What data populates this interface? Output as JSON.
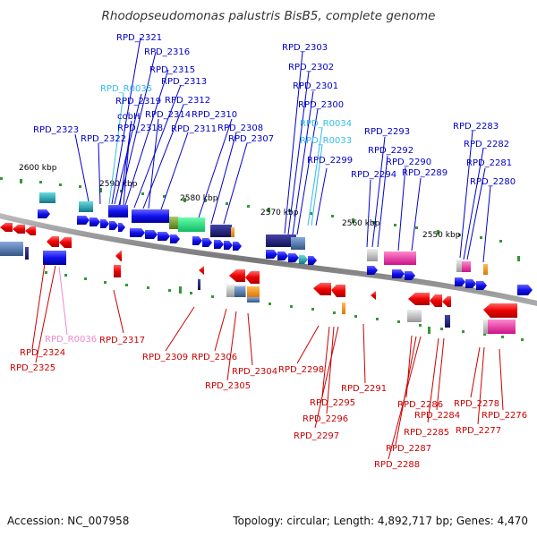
{
  "title": "Rhodopseudomonas palustris BisB5, complete genome",
  "footer": {
    "accession": "Accession: NC_007958",
    "summary": "Topology: circular; Length: 4,892,717 bp; Genes: 4,470"
  },
  "colors": {
    "forward_label": "#0000cc",
    "reverse_label": "#cc0000",
    "rna_forward_label": "#33bbee",
    "rna_reverse_label": "#ee88cc",
    "backbone": "#808080"
  },
  "scale_marks": [
    "2600 kbp",
    "2590 kbp",
    "2580 kbp",
    "2570 kbp",
    "2560 kbp",
    "2550 kbp"
  ],
  "forward_labels": [
    "RPD_2321",
    "RPD_2316",
    "RPD_2315",
    "RPD_2313",
    "RPD_R0035",
    "RPD_2319",
    "RPD_2312",
    "RPD_2314",
    "cobH",
    "RPD_2310",
    "RPD_2318",
    "RPD_2311",
    "RPD_2323",
    "RPD_2308",
    "RPD_2322",
    "RPD_2307",
    "RPD_2303",
    "RPD_2302",
    "RPD_2301",
    "RPD_2300",
    "RPD_R0034",
    "RPD_R0033",
    "RPD_2299",
    "RPD_2293",
    "RPD_2292",
    "RPD_2290",
    "RPD_2294",
    "RPD_2289",
    "RPD_2283",
    "RPD_2282",
    "RPD_2281",
    "RPD_2280"
  ],
  "reverse_labels": [
    "RPD_R0036",
    "RPD_2317",
    "RPD_2324",
    "RPD_2325",
    "RPD_2309",
    "RPD_2306",
    "RPD_2304",
    "RPD_2305",
    "RPD_2298",
    "RPD_2295",
    "RPD_2296",
    "RPD_2297",
    "RPD_2291",
    "RPD_2286",
    "RPD_2284",
    "RPD_2285",
    "RPD_2287",
    "RPD_2288",
    "RPD_2278",
    "RPD_2276",
    "RPD_2277"
  ]
}
